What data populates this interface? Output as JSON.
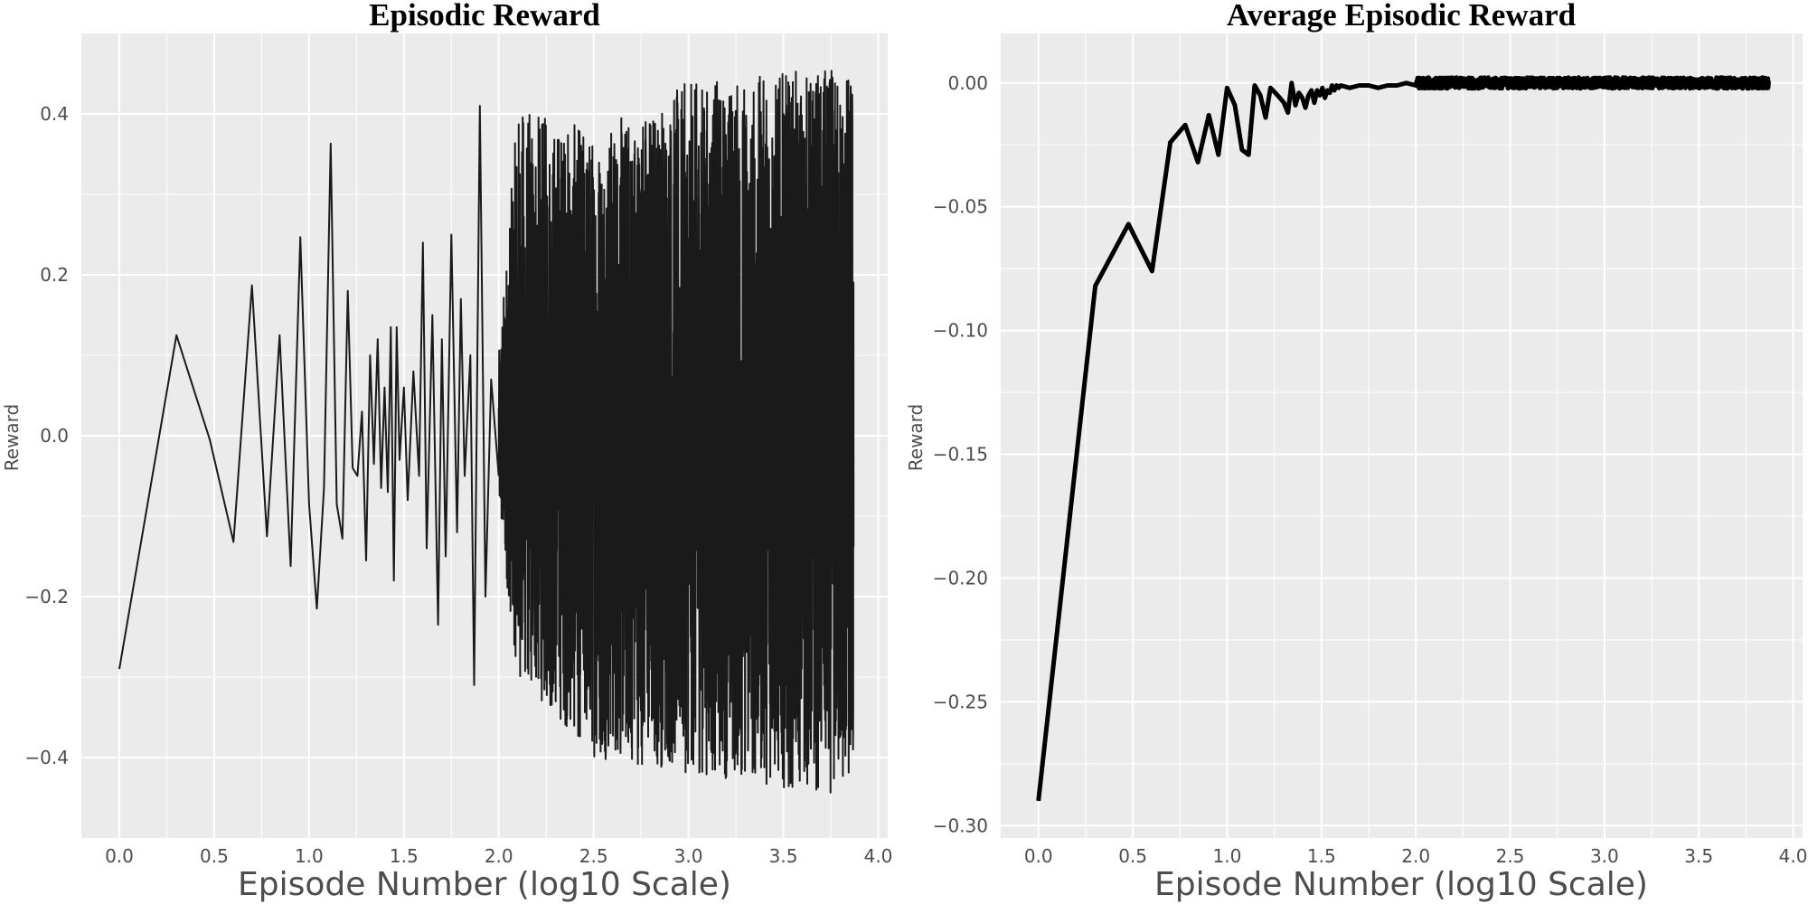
{
  "chart_data": [
    {
      "type": "line",
      "title": "Episodic Reward",
      "xlabel": "Episode Number (log10 Scale)",
      "ylabel": "Reward",
      "xlim": [
        -0.2,
        4.05
      ],
      "ylim": [
        -0.5,
        0.5
      ],
      "xticks": [
        0.0,
        0.5,
        1.0,
        1.5,
        2.0,
        2.5,
        3.0,
        3.5,
        4.0
      ],
      "xtick_labels": [
        "0.0",
        "0.5",
        "1.0",
        "1.5",
        "2.0",
        "2.5",
        "3.0",
        "3.5",
        "4.0"
      ],
      "yticks": [
        -0.4,
        -0.2,
        0.0,
        0.2,
        0.4
      ],
      "ytick_labels": [
        "−0.4",
        "−0.2",
        "0.0",
        "0.2",
        "0.4"
      ],
      "grid": true,
      "line_color": "#1a1a1a",
      "series": [
        {
          "x": [
            0.0,
            0.301,
            0.477,
            0.602,
            0.699,
            0.778,
            0.845,
            0.903,
            0.954,
            1.0,
            1.041,
            1.079,
            1.114,
            1.146,
            1.176,
            1.204,
            1.23,
            1.255,
            1.279,
            1.301,
            1.322,
            1.342,
            1.362,
            1.38,
            1.398,
            1.415,
            1.431,
            1.447,
            1.462,
            1.477,
            1.5,
            1.52,
            1.55,
            1.58,
            1.6,
            1.62,
            1.65,
            1.68,
            1.7,
            1.72,
            1.75,
            1.78,
            1.8,
            1.82,
            1.85,
            1.87,
            1.9,
            1.93,
            1.96,
            2.0
          ],
          "y": [
            -0.29,
            0.125,
            -0.005,
            -0.132,
            0.187,
            -0.125,
            0.125,
            -0.162,
            0.247,
            -0.085,
            -0.215,
            -0.065,
            0.363,
            -0.085,
            -0.128,
            0.18,
            -0.04,
            -0.05,
            0.03,
            -0.155,
            0.1,
            -0.035,
            0.12,
            -0.065,
            0.06,
            -0.07,
            0.135,
            -0.18,
            0.135,
            -0.03,
            0.06,
            -0.08,
            0.08,
            -0.05,
            0.24,
            -0.14,
            0.15,
            -0.235,
            0.12,
            -0.15,
            0.25,
            -0.12,
            0.17,
            -0.05,
            0.1,
            -0.31,
            0.41,
            -0.2,
            0.07,
            -0.05
          ]
        }
      ],
      "noise_segment": {
        "x_start": 2.0,
        "x_end": 3.87,
        "points": 2600,
        "envelope_min": [
          [
            2.0,
            -0.1
          ],
          [
            2.1,
            -0.3
          ],
          [
            2.5,
            -0.4
          ],
          [
            3.0,
            -0.42
          ],
          [
            3.87,
            -0.45
          ]
        ],
        "envelope_max": [
          [
            2.0,
            0.1
          ],
          [
            2.1,
            0.41
          ],
          [
            2.5,
            0.38
          ],
          [
            3.0,
            0.44
          ],
          [
            3.87,
            0.46
          ]
        ]
      }
    },
    {
      "type": "line",
      "title": "Average Episodic Reward",
      "xlabel": "Episode Number (log10 Scale)",
      "ylabel": "Reward",
      "xlim": [
        -0.2,
        4.05
      ],
      "ylim": [
        -0.305,
        0.02
      ],
      "xticks": [
        0.0,
        0.5,
        1.0,
        1.5,
        2.0,
        2.5,
        3.0,
        3.5,
        4.0
      ],
      "xtick_labels": [
        "0.0",
        "0.5",
        "1.0",
        "1.5",
        "2.0",
        "2.5",
        "3.0",
        "3.5",
        "4.0"
      ],
      "yticks": [
        0.0,
        -0.05,
        -0.1,
        -0.15,
        -0.2,
        -0.25,
        -0.3
      ],
      "ytick_labels": [
        "0.00",
        "−0.05",
        "−0.10",
        "−0.15",
        "−0.20",
        "−0.25",
        "−0.30"
      ],
      "grid": true,
      "line_color": "#000000",
      "series": [
        {
          "x": [
            0.0,
            0.301,
            0.477,
            0.602,
            0.699,
            0.778,
            0.845,
            0.903,
            0.954,
            1.0,
            1.041,
            1.079,
            1.114,
            1.146,
            1.176,
            1.204,
            1.23,
            1.255,
            1.279,
            1.301,
            1.322,
            1.342,
            1.362,
            1.38,
            1.398,
            1.415,
            1.431,
            1.447,
            1.462,
            1.477,
            1.491,
            1.505,
            1.518,
            1.531,
            1.544,
            1.556,
            1.568,
            1.58,
            1.591,
            1.602,
            1.65,
            1.7,
            1.75,
            1.8,
            1.85,
            1.9,
            1.95,
            2.0,
            2.05,
            2.1,
            2.2,
            2.3,
            2.4,
            2.5,
            2.6,
            2.7,
            2.8,
            2.9,
            3.0,
            3.1,
            3.2,
            3.3,
            3.4,
            3.5,
            3.6,
            3.7,
            3.8,
            3.87
          ],
          "y": [
            -0.29,
            -0.082,
            -0.057,
            -0.076,
            -0.024,
            -0.017,
            -0.032,
            -0.013,
            -0.029,
            -0.002,
            -0.009,
            -0.027,
            -0.029,
            -0.001,
            -0.005,
            -0.014,
            -0.002,
            -0.004,
            -0.006,
            -0.008,
            -0.012,
            0.0,
            -0.009,
            -0.004,
            -0.006,
            -0.01,
            -0.005,
            -0.003,
            -0.008,
            -0.003,
            -0.005,
            -0.002,
            -0.006,
            -0.003,
            -0.004,
            -0.001,
            -0.003,
            -0.001,
            -0.002,
            -0.001,
            -0.002,
            -0.001,
            -0.001,
            -0.002,
            -0.001,
            -0.001,
            0.0,
            -0.001,
            -0.002,
            -0.002,
            -0.001,
            -0.001,
            -0.001,
            0.0,
            0.0,
            0.0,
            0.0,
            0.0,
            0.0,
            0.0,
            0.0,
            0.0,
            0.0,
            0.0,
            0.0,
            0.0,
            0.0,
            0.0
          ]
        }
      ],
      "noise_segment": {
        "x_start": 2.0,
        "x_end": 3.87,
        "points": 1500,
        "amplitude": 0.0022
      }
    }
  ]
}
